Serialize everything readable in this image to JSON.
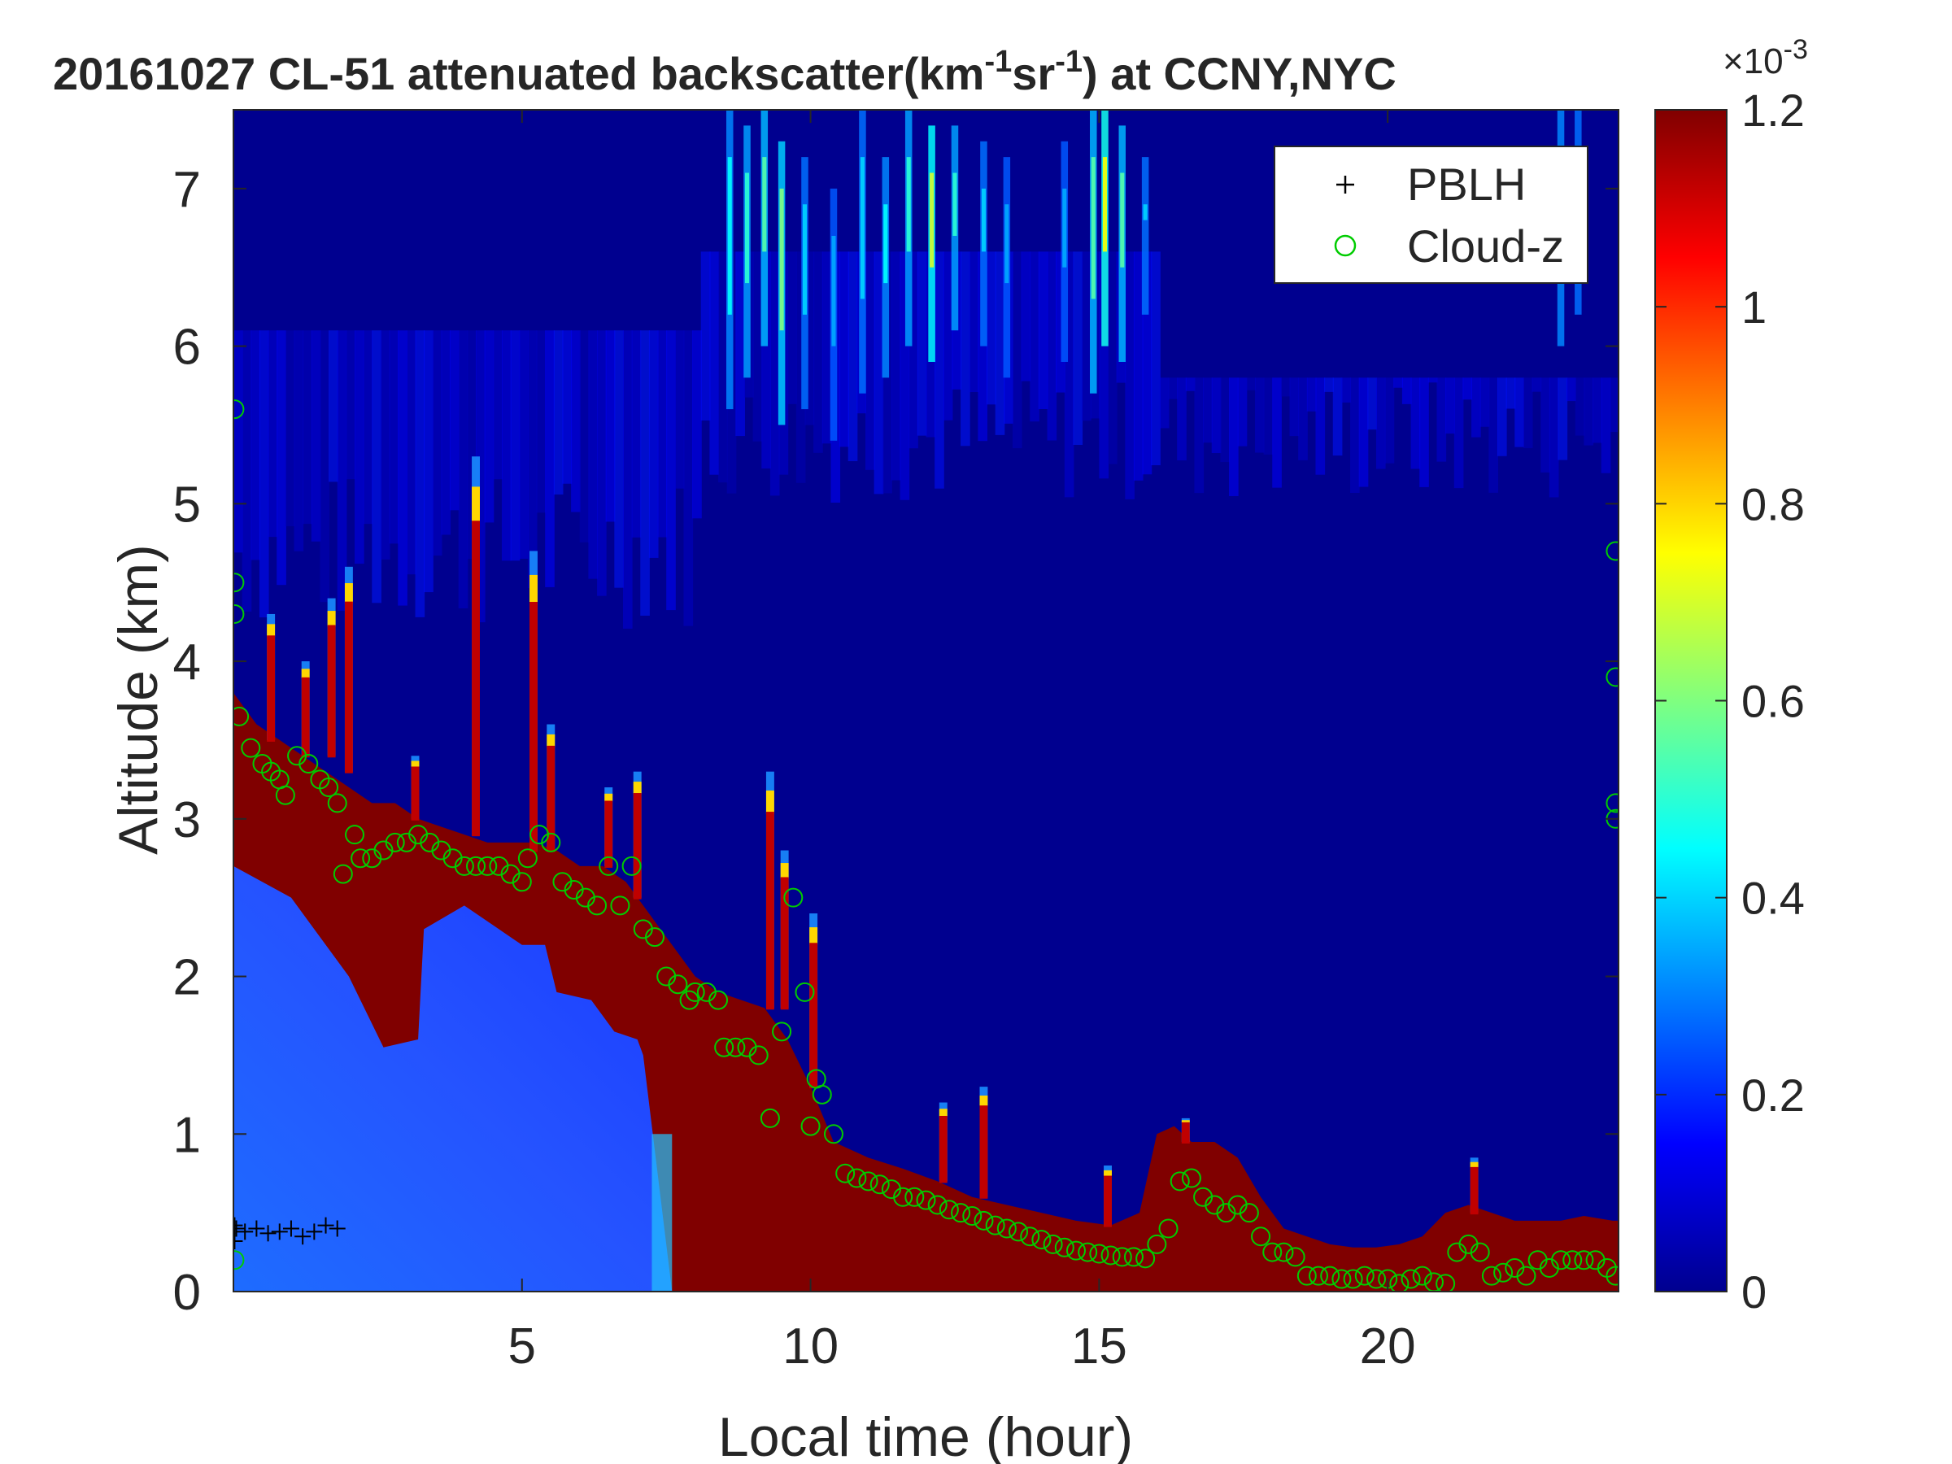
{
  "chart_data": {
    "type": "heatmap",
    "title_main": "20161027  CL-51 attenuated backscatter(km",
    "title_sup1": "-1",
    "title_mid": "sr",
    "title_sup2": "-1",
    "title_end": ") at CCNY,NYC",
    "xlabel": "Local time (hour)",
    "ylabel": "Altitude (km)",
    "xlim": [
      0,
      24
    ],
    "ylim": [
      0,
      7.5
    ],
    "xticks": [
      5,
      10,
      15,
      20
    ],
    "yticks": [
      0,
      1,
      2,
      3,
      4,
      5,
      6,
      7
    ],
    "colorbar": {
      "min": 0,
      "max": 1.2,
      "ticks": [
        0,
        0.2,
        0.4,
        0.6,
        0.8,
        1,
        1.2
      ],
      "exponent_base": "×10",
      "exponent_power": "-3",
      "colormap": "jet"
    },
    "legend": {
      "placement": "top-right",
      "entries": [
        {
          "label": "PBLH",
          "marker": "+",
          "color": "#000000"
        },
        {
          "label": "Cloud-z",
          "marker": "o",
          "color": "#00cc00"
        }
      ]
    },
    "aerosol_layer_top_km": [
      [
        0,
        3.8
      ],
      [
        0.4,
        3.6
      ],
      [
        0.8,
        3.5
      ],
      [
        1.2,
        3.4
      ],
      [
        1.6,
        3.3
      ],
      [
        2.0,
        3.2
      ],
      [
        2.4,
        3.1
      ],
      [
        2.8,
        3.1
      ],
      [
        3.2,
        3.0
      ],
      [
        3.6,
        2.95
      ],
      [
        4.0,
        2.9
      ],
      [
        4.4,
        2.85
      ],
      [
        4.8,
        2.85
      ],
      [
        5.2,
        2.85
      ],
      [
        5.6,
        2.8
      ],
      [
        6.0,
        2.7
      ],
      [
        6.4,
        2.7
      ],
      [
        6.8,
        2.6
      ],
      [
        7.2,
        2.4
      ],
      [
        7.6,
        2.2
      ],
      [
        8.0,
        2.0
      ],
      [
        8.4,
        1.9
      ],
      [
        8.8,
        1.85
      ],
      [
        9.2,
        1.8
      ],
      [
        9.6,
        1.6
      ],
      [
        10.0,
        1.3
      ],
      [
        10.4,
        0.95
      ],
      [
        11.0,
        0.85
      ],
      [
        11.6,
        0.78
      ],
      [
        12.2,
        0.7
      ],
      [
        12.8,
        0.6
      ],
      [
        13.4,
        0.55
      ],
      [
        14.0,
        0.5
      ],
      [
        14.6,
        0.45
      ],
      [
        15.2,
        0.42
      ],
      [
        15.7,
        0.5
      ],
      [
        16.0,
        1.0
      ],
      [
        16.3,
        1.05
      ],
      [
        16.6,
        0.95
      ],
      [
        17.0,
        0.95
      ],
      [
        17.4,
        0.85
      ],
      [
        17.8,
        0.6
      ],
      [
        18.2,
        0.4
      ],
      [
        18.6,
        0.35
      ],
      [
        19.0,
        0.3
      ],
      [
        19.4,
        0.28
      ],
      [
        19.8,
        0.28
      ],
      [
        20.2,
        0.3
      ],
      [
        20.6,
        0.35
      ],
      [
        21.0,
        0.5
      ],
      [
        21.4,
        0.55
      ],
      [
        21.8,
        0.5
      ],
      [
        22.2,
        0.45
      ],
      [
        22.6,
        0.45
      ],
      [
        23.0,
        0.45
      ],
      [
        23.4,
        0.48
      ],
      [
        23.9,
        0.45
      ]
    ],
    "clear_gap_lower_km": [
      [
        0,
        2.7
      ],
      [
        1.0,
        2.5
      ],
      [
        2.0,
        2.0
      ],
      [
        2.6,
        1.55
      ],
      [
        3.2,
        1.6
      ],
      [
        3.3,
        2.3
      ],
      [
        4.0,
        2.45
      ],
      [
        4.6,
        2.3
      ],
      [
        5.0,
        2.2
      ],
      [
        5.4,
        2.2
      ],
      [
        5.6,
        1.9
      ],
      [
        6.2,
        1.85
      ],
      [
        6.6,
        1.65
      ],
      [
        7.0,
        1.6
      ],
      [
        7.1,
        1.5
      ]
    ],
    "plumes": [
      {
        "x": 0.65,
        "top": 4.3,
        "base": 3.5
      },
      {
        "x": 1.25,
        "top": 4.0,
        "base": 3.4
      },
      {
        "x": 1.7,
        "top": 4.4,
        "base": 3.4
      },
      {
        "x": 2.0,
        "top": 4.6,
        "base": 3.3
      },
      {
        "x": 3.15,
        "top": 3.4,
        "base": 3.0
      },
      {
        "x": 4.2,
        "top": 5.3,
        "base": 2.9
      },
      {
        "x": 5.2,
        "top": 4.7,
        "base": 2.8
      },
      {
        "x": 5.5,
        "top": 3.6,
        "base": 2.8
      },
      {
        "x": 6.5,
        "top": 3.2,
        "base": 2.7
      },
      {
        "x": 7.0,
        "top": 3.3,
        "base": 2.5
      },
      {
        "x": 9.3,
        "top": 3.3,
        "base": 1.8
      },
      {
        "x": 9.55,
        "top": 2.8,
        "base": 1.8
      },
      {
        "x": 10.05,
        "top": 2.4,
        "base": 1.3
      },
      {
        "x": 12.3,
        "top": 1.2,
        "base": 0.7
      },
      {
        "x": 13.0,
        "top": 1.3,
        "base": 0.6
      },
      {
        "x": 15.15,
        "top": 0.8,
        "base": 0.42
      },
      {
        "x": 16.5,
        "top": 1.1,
        "base": 0.95
      },
      {
        "x": 21.5,
        "top": 0.85,
        "base": 0.5
      }
    ],
    "cloud_streaks": [
      {
        "x": 8.6,
        "y0": 5.6,
        "y1": 7.5,
        "v": 0.45
      },
      {
        "x": 8.9,
        "y0": 5.8,
        "y1": 7.4,
        "v": 0.5
      },
      {
        "x": 9.2,
        "y0": 6.0,
        "y1": 7.5,
        "v": 0.55
      },
      {
        "x": 9.5,
        "y0": 5.5,
        "y1": 7.3,
        "v": 0.6
      },
      {
        "x": 9.9,
        "y0": 5.6,
        "y1": 7.2,
        "v": 0.4
      },
      {
        "x": 10.4,
        "y0": 5.4,
        "y1": 7.0,
        "v": 0.35
      },
      {
        "x": 10.9,
        "y0": 5.7,
        "y1": 7.5,
        "v": 0.4
      },
      {
        "x": 11.3,
        "y0": 5.8,
        "y1": 7.2,
        "v": 0.45
      },
      {
        "x": 11.7,
        "y0": 6.0,
        "y1": 7.5,
        "v": 0.5
      },
      {
        "x": 12.1,
        "y0": 5.9,
        "y1": 7.4,
        "v": 0.7
      },
      {
        "x": 12.5,
        "y0": 6.1,
        "y1": 7.4,
        "v": 0.5
      },
      {
        "x": 13.0,
        "y0": 6.0,
        "y1": 7.3,
        "v": 0.4
      },
      {
        "x": 13.4,
        "y0": 5.8,
        "y1": 7.2,
        "v": 0.35
      },
      {
        "x": 14.4,
        "y0": 5.9,
        "y1": 7.3,
        "v": 0.35
      },
      {
        "x": 14.9,
        "y0": 5.7,
        "y1": 7.5,
        "v": 0.55
      },
      {
        "x": 15.1,
        "y0": 6.0,
        "y1": 7.5,
        "v": 0.75
      },
      {
        "x": 15.4,
        "y0": 5.9,
        "y1": 7.4,
        "v": 0.55
      },
      {
        "x": 15.8,
        "y0": 6.2,
        "y1": 7.2,
        "v": 0.4
      },
      {
        "x": 23.0,
        "y0": 6.0,
        "y1": 7.5,
        "v": 0.45
      },
      {
        "x": 23.3,
        "y0": 6.2,
        "y1": 7.5,
        "v": 0.4
      }
    ],
    "cloud_z_points": [
      [
        0.1,
        3.65
      ],
      [
        0.3,
        3.45
      ],
      [
        0.5,
        3.35
      ],
      [
        0.65,
        3.3
      ],
      [
        0.8,
        3.25
      ],
      [
        0.9,
        3.15
      ],
      [
        1.1,
        3.4
      ],
      [
        1.3,
        3.35
      ],
      [
        1.5,
        3.25
      ],
      [
        1.65,
        3.2
      ],
      [
        1.8,
        3.1
      ],
      [
        1.9,
        2.65
      ],
      [
        2.1,
        2.9
      ],
      [
        2.2,
        2.75
      ],
      [
        2.4,
        2.75
      ],
      [
        2.6,
        2.8
      ],
      [
        2.8,
        2.85
      ],
      [
        3.0,
        2.85
      ],
      [
        3.2,
        2.9
      ],
      [
        3.4,
        2.85
      ],
      [
        3.6,
        2.8
      ],
      [
        3.8,
        2.75
      ],
      [
        4.0,
        2.7
      ],
      [
        4.2,
        2.7
      ],
      [
        4.4,
        2.7
      ],
      [
        4.6,
        2.7
      ],
      [
        4.8,
        2.65
      ],
      [
        5.0,
        2.6
      ],
      [
        5.1,
        2.75
      ],
      [
        5.3,
        2.9
      ],
      [
        5.5,
        2.85
      ],
      [
        5.7,
        2.6
      ],
      [
        5.9,
        2.55
      ],
      [
        6.1,
        2.5
      ],
      [
        6.3,
        2.45
      ],
      [
        6.5,
        2.7
      ],
      [
        6.7,
        2.45
      ],
      [
        6.9,
        2.7
      ],
      [
        7.1,
        2.3
      ],
      [
        7.3,
        2.25
      ],
      [
        7.5,
        2.0
      ],
      [
        7.7,
        1.95
      ],
      [
        7.9,
        1.85
      ],
      [
        8.0,
        1.9
      ],
      [
        8.2,
        1.9
      ],
      [
        8.4,
        1.85
      ],
      [
        8.5,
        1.55
      ],
      [
        8.7,
        1.55
      ],
      [
        8.9,
        1.55
      ],
      [
        9.1,
        1.5
      ],
      [
        9.3,
        1.1
      ],
      [
        9.5,
        1.65
      ],
      [
        9.7,
        2.5
      ],
      [
        9.9,
        1.9
      ],
      [
        10.0,
        1.05
      ],
      [
        10.1,
        1.35
      ],
      [
        10.2,
        1.25
      ],
      [
        10.4,
        1.0
      ],
      [
        10.6,
        0.75
      ],
      [
        10.8,
        0.72
      ],
      [
        11.0,
        0.7
      ],
      [
        11.2,
        0.68
      ],
      [
        11.4,
        0.65
      ],
      [
        11.6,
        0.6
      ],
      [
        11.8,
        0.6
      ],
      [
        12.0,
        0.58
      ],
      [
        12.2,
        0.55
      ],
      [
        12.4,
        0.52
      ],
      [
        12.6,
        0.5
      ],
      [
        12.8,
        0.48
      ],
      [
        13.0,
        0.45
      ],
      [
        13.2,
        0.42
      ],
      [
        13.4,
        0.4
      ],
      [
        13.6,
        0.38
      ],
      [
        13.8,
        0.35
      ],
      [
        14.0,
        0.33
      ],
      [
        14.2,
        0.3
      ],
      [
        14.4,
        0.28
      ],
      [
        14.6,
        0.26
      ],
      [
        14.8,
        0.25
      ],
      [
        15.0,
        0.24
      ],
      [
        15.2,
        0.23
      ],
      [
        15.4,
        0.22
      ],
      [
        15.6,
        0.22
      ],
      [
        15.8,
        0.21
      ],
      [
        16.0,
        0.3
      ],
      [
        16.2,
        0.4
      ],
      [
        16.4,
        0.7
      ],
      [
        16.6,
        0.72
      ],
      [
        16.8,
        0.6
      ],
      [
        17.0,
        0.55
      ],
      [
        17.2,
        0.5
      ],
      [
        17.4,
        0.55
      ],
      [
        17.6,
        0.5
      ],
      [
        17.8,
        0.35
      ],
      [
        18.0,
        0.25
      ],
      [
        18.2,
        0.25
      ],
      [
        18.4,
        0.22
      ],
      [
        18.6,
        0.1
      ],
      [
        18.8,
        0.1
      ],
      [
        19.0,
        0.1
      ],
      [
        19.2,
        0.08
      ],
      [
        19.4,
        0.08
      ],
      [
        19.6,
        0.1
      ],
      [
        19.8,
        0.08
      ],
      [
        20.0,
        0.08
      ],
      [
        20.2,
        0.05
      ],
      [
        20.4,
        0.08
      ],
      [
        20.6,
        0.1
      ],
      [
        20.8,
        0.06
      ],
      [
        21.0,
        0.05
      ],
      [
        21.2,
        0.25
      ],
      [
        21.4,
        0.3
      ],
      [
        21.6,
        0.25
      ],
      [
        21.8,
        0.1
      ],
      [
        22.0,
        0.12
      ],
      [
        22.2,
        0.15
      ],
      [
        22.4,
        0.1
      ],
      [
        22.6,
        0.2
      ],
      [
        22.8,
        0.15
      ],
      [
        23.0,
        0.2
      ],
      [
        23.2,
        0.2
      ],
      [
        23.4,
        0.2
      ],
      [
        23.6,
        0.2
      ],
      [
        23.8,
        0.15
      ],
      [
        23.95,
        0.1
      ],
      [
        0.02,
        5.6
      ],
      [
        0.02,
        4.5
      ],
      [
        0.02,
        4.3
      ],
      [
        0.02,
        0.2
      ],
      [
        23.95,
        4.7
      ],
      [
        23.95,
        3.9
      ],
      [
        23.95,
        3.1
      ],
      [
        23.95,
        3.0
      ]
    ],
    "pblh_points": [
      [
        0.05,
        0.4
      ],
      [
        0.2,
        0.38
      ],
      [
        0.4,
        0.4
      ],
      [
        0.6,
        0.37
      ],
      [
        0.8,
        0.38
      ],
      [
        1.0,
        0.4
      ],
      [
        1.2,
        0.35
      ],
      [
        1.4,
        0.38
      ],
      [
        1.6,
        0.42
      ],
      [
        1.8,
        0.4
      ],
      [
        0.02,
        0.42
      ],
      [
        0.02,
        0.32
      ]
    ]
  }
}
